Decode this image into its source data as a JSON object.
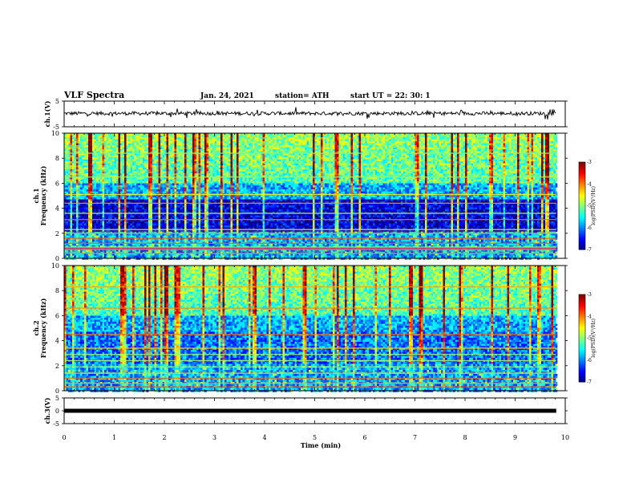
{
  "header": {
    "title": "VLF Spectra",
    "date": "Jan. 24, 2021",
    "station": "station= ATH",
    "start": "start UT =   22: 30: 1"
  },
  "chart_data": [
    {
      "type": "line",
      "panel": "ch1-voltage",
      "ylabel": "ch.1(V)",
      "ylim": [
        -5,
        5
      ],
      "yticks": [
        "5",
        "-5"
      ],
      "x_range_min": [
        0,
        9.82
      ],
      "baseline_v": 0.2,
      "color": "#000000"
    },
    {
      "type": "heatmap",
      "panel": "ch1-spectrogram",
      "ylabel": "ch.1\nFrequency (kHz)",
      "ylim": [
        0,
        10
      ],
      "yticks": [
        "0",
        "2",
        "4",
        "6",
        "8",
        "10"
      ],
      "x_range_min": [
        0,
        9.82
      ],
      "colorbar": {
        "label": "log(PSD)(V²/Hz)",
        "range": [
          -7,
          -3
        ],
        "ticks": [
          "-3",
          "-4",
          "-5",
          "-6",
          "-7"
        ]
      }
    },
    {
      "type": "heatmap",
      "panel": "ch2-spectrogram",
      "ylabel": "ch.2\nFrequency (kHz)",
      "ylim": [
        0,
        10
      ],
      "yticks": [
        "0",
        "2",
        "4",
        "6",
        "8",
        "10"
      ],
      "x_range_min": [
        0,
        9.82
      ],
      "colorbar": {
        "label": "log(PSD)(V²/Hz)",
        "range": [
          -7,
          -3
        ],
        "ticks": [
          "-3",
          "-4",
          "-5",
          "-6",
          "-7"
        ]
      }
    },
    {
      "type": "line",
      "panel": "ch3-voltage",
      "ylabel": "ch.3(V)",
      "ylim": [
        -5,
        5
      ],
      "yticks": [
        "5",
        "0",
        "-5"
      ],
      "x_range_min": [
        0,
        9.82
      ],
      "baseline_v": 0.0,
      "color": "#000000"
    }
  ],
  "xaxis": {
    "label": "Time  (min)",
    "range": [
      0,
      10
    ],
    "ticks": [
      "0",
      "1",
      "2",
      "3",
      "4",
      "5",
      "6",
      "7",
      "8",
      "9",
      "10"
    ]
  }
}
